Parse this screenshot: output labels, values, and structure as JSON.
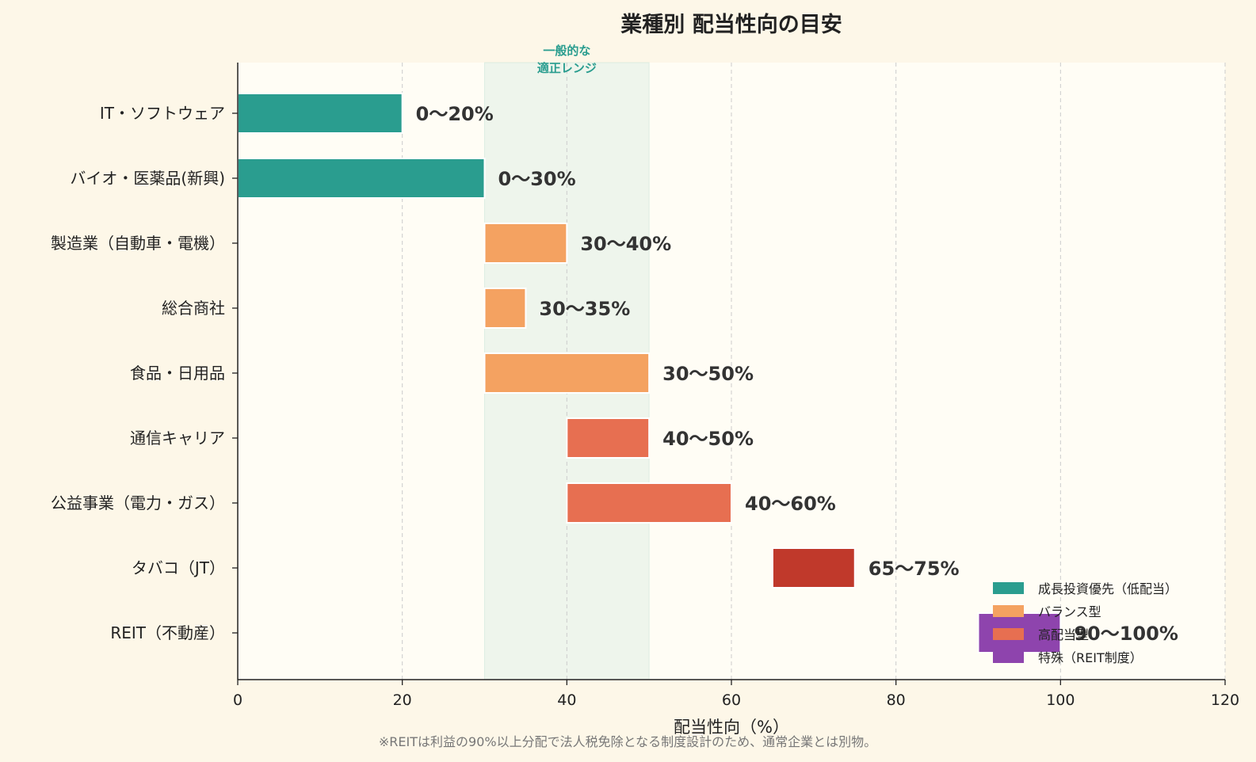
{
  "chart_data": {
    "type": "bar",
    "orientation": "horizontal",
    "title": "業種別 配当性向の目安",
    "xlabel": "配当性向（%）",
    "xlim": [
      0,
      120
    ],
    "xticks": [
      0,
      20,
      40,
      60,
      80,
      100,
      120
    ],
    "grid": "vertical-dashed",
    "legend_position": "bottom-right",
    "reference_band": {
      "from": 30,
      "to": 50,
      "label_lines": [
        "一般的な",
        "適正レンジ"
      ],
      "color": "#2a9d8f"
    },
    "categories": [
      "IT・ソフトウェア",
      "バイオ・医薬品(新興)",
      "製造業（自動車・電機）",
      "総合商社",
      "食品・日用品",
      "通信キャリア",
      "公益事業（電力・ガス）",
      "タバコ（JT）",
      "REIT（不動産）"
    ],
    "ranges": [
      {
        "start": 0,
        "end": 20,
        "label": "0〜20%",
        "group": 0
      },
      {
        "start": 0,
        "end": 30,
        "label": "0〜30%",
        "group": 0
      },
      {
        "start": 30,
        "end": 40,
        "label": "30〜40%",
        "group": 1
      },
      {
        "start": 30,
        "end": 35,
        "label": "30〜35%",
        "group": 1
      },
      {
        "start": 30,
        "end": 50,
        "label": "30〜50%",
        "group": 1
      },
      {
        "start": 40,
        "end": 50,
        "label": "40〜50%",
        "group": 2
      },
      {
        "start": 40,
        "end": 60,
        "label": "40〜60%",
        "group": 2
      },
      {
        "start": 65,
        "end": 75,
        "label": "65〜75%",
        "group": 3
      },
      {
        "start": 90,
        "end": 100,
        "label": "90〜100%",
        "group": 4
      }
    ],
    "bar_colors": [
      "#2a9d8f",
      "#f4a261",
      "#e76f51",
      "#c0392b",
      "#8e44ad"
    ],
    "legend": [
      {
        "label": "成長投資優先（低配当）",
        "color": "#2a9d8f"
      },
      {
        "label": "バランス型",
        "color": "#f4a261"
      },
      {
        "label": "高配当型",
        "color": "#e76f51"
      },
      {
        "label": "特殊（REIT制度）",
        "color": "#8e44ad"
      }
    ],
    "footnote": "※REITは利益の90%以上分配で法人税免除となる制度設計のため、通常企業とは別物。"
  }
}
